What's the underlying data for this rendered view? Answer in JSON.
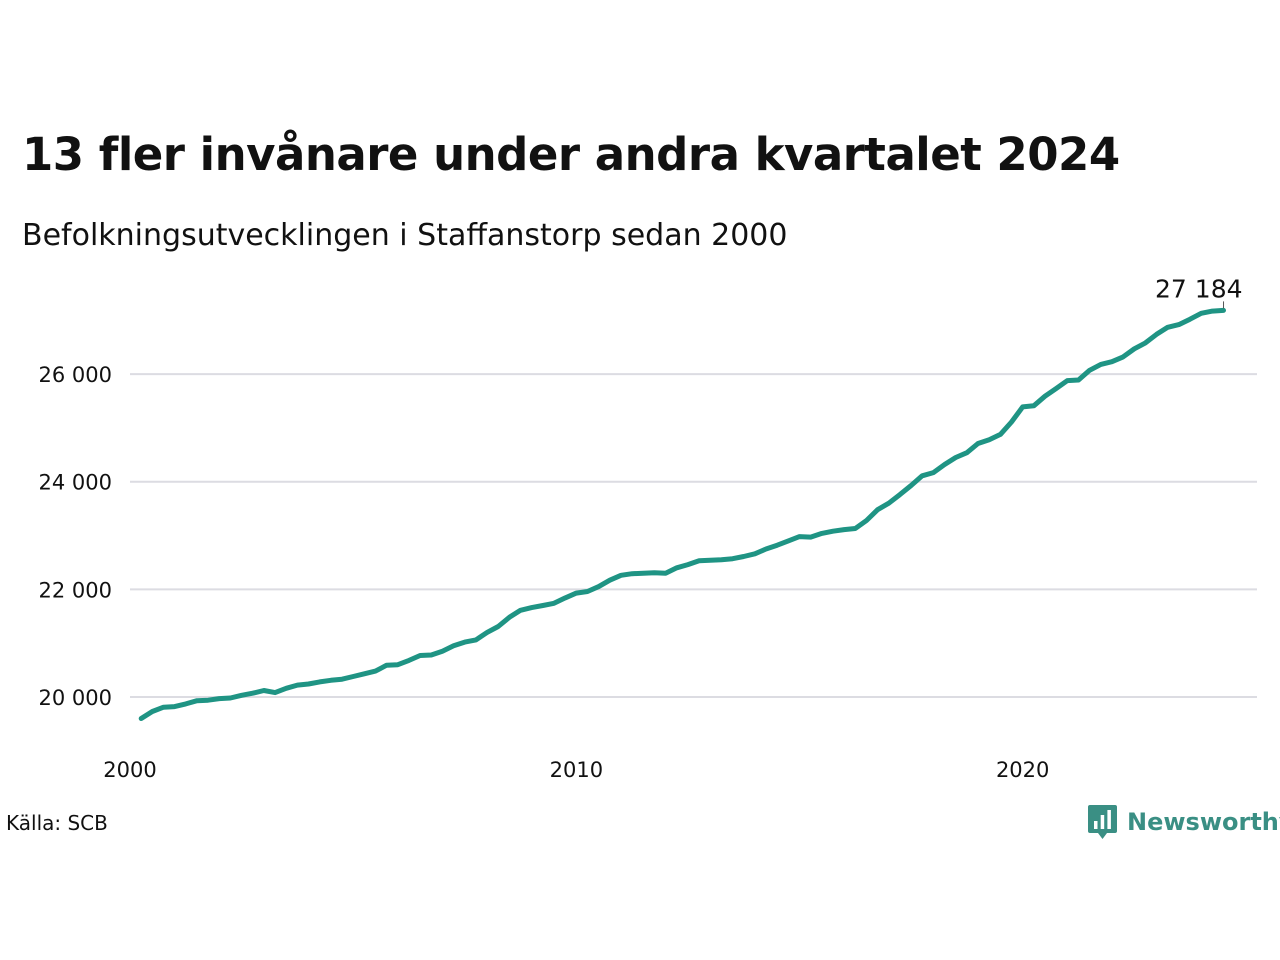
{
  "title": "13 fler invånare under andra kvartalet 2024",
  "subtitle": "Befolkningsutvecklingen i Staffanstorp sedan 2000",
  "source": "Källa: SCB",
  "brand": {
    "name": "Newsworthy",
    "icon": "newsworthy-logo-icon",
    "color": "#3a8f84"
  },
  "chart_data": {
    "type": "line",
    "title": "13 fler invånare under andra kvartalet 2024",
    "subtitle": "Befolkningsutvecklingen i Staffanstorp sedan 2000",
    "xlabel": "",
    "ylabel": "",
    "xlim": [
      2000,
      2025.25
    ],
    "ylim": [
      19200,
      27600
    ],
    "x_ticks": [
      2000,
      2010,
      2020
    ],
    "x_tick_labels": [
      "2000",
      "2010",
      "2020"
    ],
    "y_ticks": [
      20000,
      22000,
      24000,
      26000
    ],
    "y_tick_labels": [
      "20 000",
      "22 000",
      "24 000",
      "26 000"
    ],
    "grid": "horizontal",
    "legend": "none",
    "line_color": "#1f9484",
    "end_label": "27 184",
    "series": [
      {
        "x": [
          2000.25,
          2000.5,
          2000.75,
          2001,
          2001.25,
          2001.5,
          2001.75,
          2002,
          2002.25,
          2002.5,
          2002.75,
          2003,
          2003.25,
          2003.5,
          2003.75,
          2004,
          2004.25,
          2004.5,
          2004.75,
          2005,
          2005.25,
          2005.5,
          2005.75,
          2006,
          2006.25,
          2006.5,
          2006.75,
          2007,
          2007.25,
          2007.5,
          2007.75,
          2008,
          2008.25,
          2008.5,
          2008.75,
          2009,
          2009.25,
          2009.5,
          2009.75,
          2010,
          2010.25,
          2010.5,
          2010.75,
          2011,
          2011.25,
          2011.5,
          2011.75,
          2012,
          2012.25,
          2012.5,
          2012.75,
          2013,
          2013.25,
          2013.5,
          2013.75,
          2014,
          2014.25,
          2014.5,
          2014.75,
          2015,
          2015.25,
          2015.5,
          2015.75,
          2016,
          2016.25,
          2016.5,
          2016.75,
          2017,
          2017.25,
          2017.5,
          2017.75,
          2018,
          2018.25,
          2018.5,
          2018.75,
          2019,
          2019.25,
          2019.5,
          2019.75,
          2020,
          2020.25,
          2020.5,
          2020.75,
          2021,
          2021.25,
          2021.5,
          2021.75,
          2022,
          2022.25,
          2022.5,
          2022.75,
          2023,
          2023.25,
          2023.5,
          2023.75,
          2024,
          2024.25,
          2024.5
        ],
        "y": [
          19600,
          19730,
          19810,
          19820,
          19870,
          19930,
          19940,
          19970,
          19980,
          20030,
          20070,
          20120,
          20080,
          20160,
          20220,
          20240,
          20280,
          20310,
          20330,
          20380,
          20430,
          20480,
          20590,
          20600,
          20680,
          20770,
          20780,
          20850,
          20950,
          21020,
          21060,
          21200,
          21310,
          21480,
          21610,
          21660,
          21700,
          21740,
          21840,
          21930,
          21960,
          22050,
          22170,
          22260,
          22290,
          22300,
          22310,
          22300,
          22400,
          22460,
          22530,
          22540,
          22550,
          22570,
          22610,
          22660,
          22750,
          22820,
          22900,
          22980,
          22970,
          23040,
          23080,
          23110,
          23130,
          23280,
          23480,
          23600,
          23760,
          23930,
          24110,
          24170,
          24320,
          24450,
          24540,
          24710,
          24780,
          24880,
          25110,
          25390,
          25410,
          25590,
          25730,
          25880,
          25890,
          26070,
          26180,
          26230,
          26320,
          26470,
          26580,
          26740,
          26870,
          26920,
          27020,
          27130,
          27170,
          27184
        ]
      }
    ]
  }
}
